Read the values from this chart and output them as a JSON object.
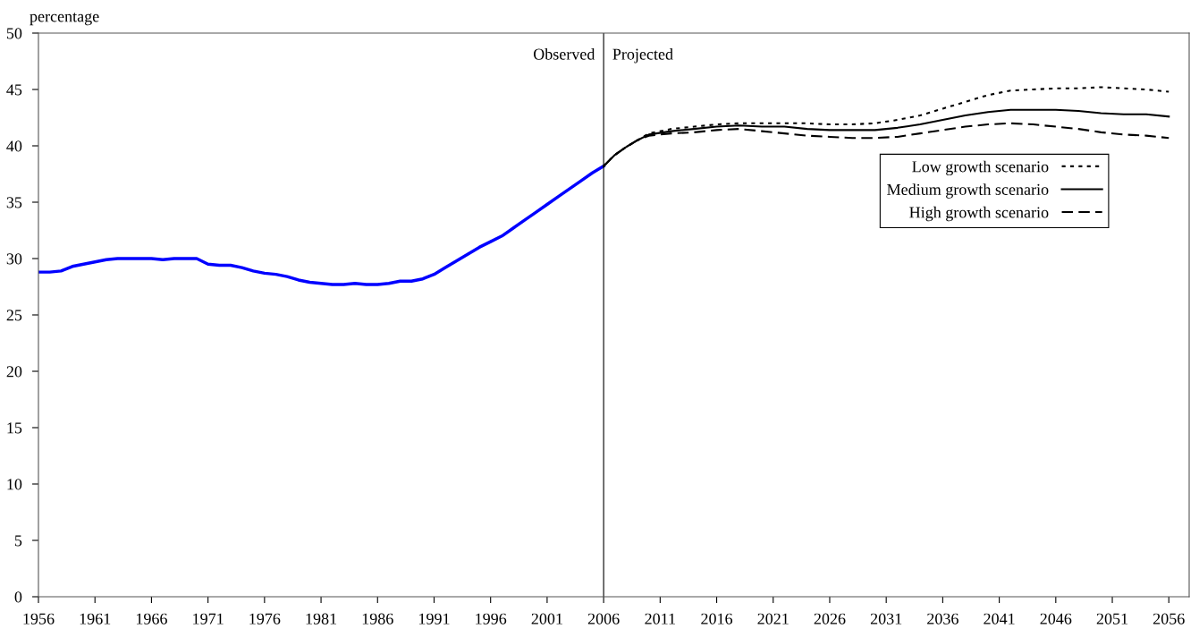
{
  "chart_data": {
    "type": "line",
    "ylabel": "percentage",
    "xlim": [
      1956,
      2057.8
    ],
    "xticks": [
      1956,
      1961,
      1966,
      1971,
      1976,
      1981,
      1986,
      1991,
      1996,
      2001,
      2006,
      2011,
      2016,
      2021,
      2026,
      2031,
      2036,
      2041,
      2046,
      2051,
      2056
    ],
    "ylim": [
      0,
      50
    ],
    "yticks": [
      0,
      5,
      10,
      15,
      20,
      25,
      30,
      35,
      40,
      45,
      50
    ],
    "grid": false,
    "legend": "right",
    "ref_lines": [
      {
        "axis": "x",
        "value": 2006,
        "color": "#000000"
      }
    ],
    "annotations": [
      {
        "text": "Observed",
        "x": 2006,
        "y": 48
      },
      {
        "text": "Projected",
        "x": 2006,
        "y": 48
      }
    ],
    "series": [
      {
        "color": "#0000ff",
        "line_style": "solid",
        "x": [
          1956,
          1957,
          1958,
          1959,
          1960,
          1961,
          1962,
          1963,
          1964,
          1965,
          1966,
          1967,
          1968,
          1969,
          1970,
          1971,
          1972,
          1973,
          1974,
          1975,
          1976,
          1977,
          1978,
          1979,
          1980,
          1981,
          1982,
          1983,
          1984,
          1985,
          1986,
          1987,
          1988,
          1989,
          1990,
          1991,
          1992,
          1993,
          1994,
          1995,
          1996,
          1997,
          1998,
          1999,
          2000,
          2001,
          2002,
          2003,
          2004,
          2005,
          2006
        ],
        "values": [
          28.8,
          28.8,
          28.9,
          29.3,
          29.5,
          29.7,
          29.9,
          30.0,
          30.0,
          30.0,
          30.0,
          29.9,
          30.0,
          30.0,
          30.0,
          29.5,
          29.4,
          29.4,
          29.2,
          28.9,
          28.7,
          28.6,
          28.4,
          28.1,
          27.9,
          27.8,
          27.7,
          27.7,
          27.8,
          27.7,
          27.7,
          27.8,
          28.0,
          28.0,
          28.2,
          28.6,
          29.2,
          29.8,
          30.4,
          31.0,
          31.5,
          32.0,
          32.7,
          33.4,
          34.1,
          34.8,
          35.5,
          36.2,
          36.9,
          37.6,
          38.2
        ]
      },
      {
        "name": "Low growth scenario",
        "color": "#000000",
        "line_style": "dotted",
        "x": [
          2006,
          2007,
          2008,
          2009,
          2010,
          2012,
          2014,
          2016,
          2018,
          2020,
          2022,
          2024,
          2026,
          2028,
          2030,
          2032,
          2034,
          2036,
          2038,
          2040,
          2042,
          2044,
          2046,
          2048,
          2050,
          2052,
          2054,
          2056
        ],
        "values": [
          38.2,
          39.2,
          39.9,
          40.5,
          41.1,
          41.5,
          41.7,
          41.9,
          42.0,
          42.0,
          42.0,
          42.0,
          41.9,
          41.9,
          42.0,
          42.3,
          42.7,
          43.3,
          43.9,
          44.5,
          44.9,
          45.0,
          45.1,
          45.1,
          45.2,
          45.1,
          45.0,
          44.8
        ]
      },
      {
        "name": "Medium growth scenario",
        "color": "#000000",
        "line_style": "solid",
        "x": [
          2006,
          2007,
          2008,
          2009,
          2010,
          2012,
          2014,
          2016,
          2018,
          2020,
          2022,
          2024,
          2026,
          2028,
          2030,
          2032,
          2034,
          2036,
          2038,
          2040,
          2042,
          2044,
          2046,
          2048,
          2050,
          2052,
          2054,
          2056
        ],
        "values": [
          38.2,
          39.2,
          39.9,
          40.5,
          41.0,
          41.3,
          41.5,
          41.7,
          41.8,
          41.7,
          41.7,
          41.5,
          41.4,
          41.4,
          41.4,
          41.6,
          41.9,
          42.3,
          42.7,
          43.0,
          43.2,
          43.2,
          43.2,
          43.1,
          42.9,
          42.8,
          42.8,
          42.6
        ]
      },
      {
        "name": "High growth scenario",
        "color": "#000000",
        "line_style": "dashed",
        "x": [
          2006,
          2007,
          2008,
          2009,
          2010,
          2012,
          2014,
          2016,
          2018,
          2020,
          2022,
          2024,
          2026,
          2028,
          2030,
          2032,
          2034,
          2036,
          2038,
          2040,
          2042,
          2044,
          2046,
          2048,
          2050,
          2052,
          2054,
          2056
        ],
        "values": [
          38.2,
          39.2,
          39.9,
          40.5,
          40.9,
          41.1,
          41.2,
          41.4,
          41.5,
          41.3,
          41.1,
          40.9,
          40.8,
          40.7,
          40.7,
          40.8,
          41.1,
          41.4,
          41.7,
          41.9,
          42.0,
          41.9,
          41.7,
          41.5,
          41.2,
          41.0,
          40.9,
          40.7
        ]
      }
    ]
  }
}
